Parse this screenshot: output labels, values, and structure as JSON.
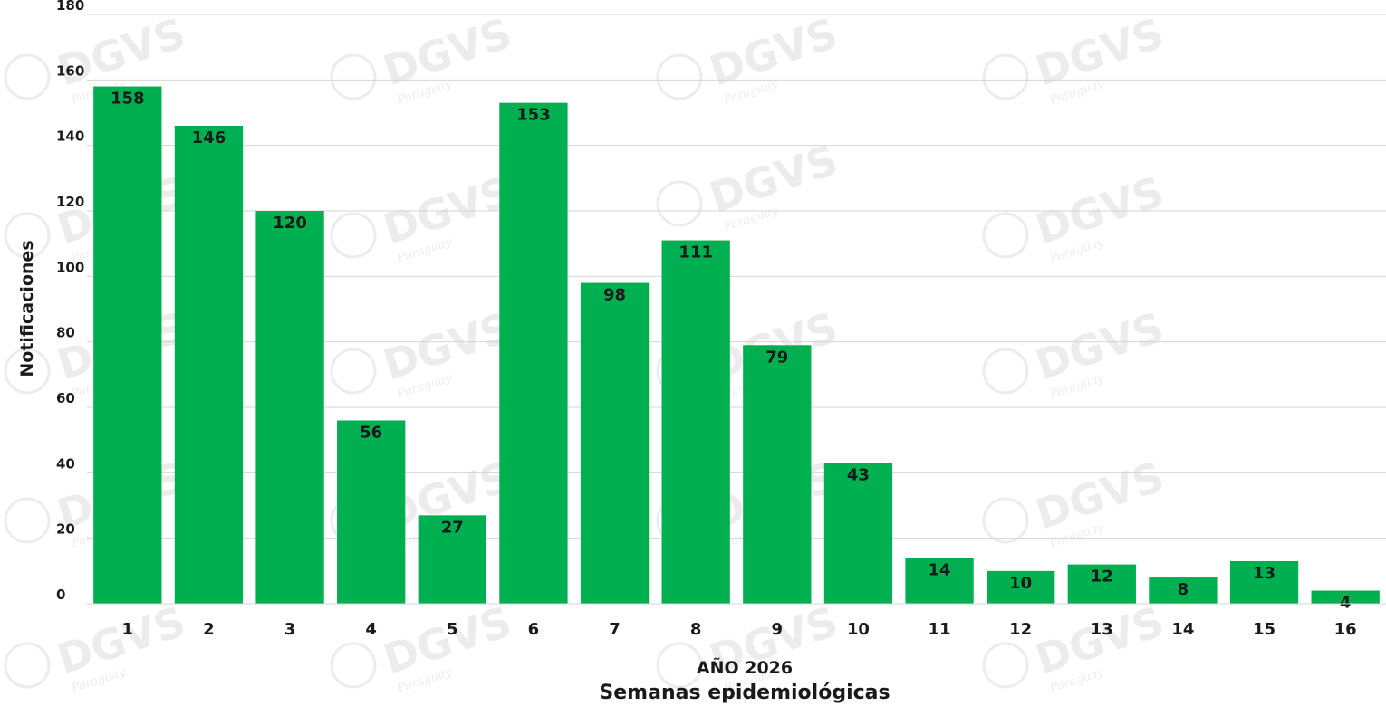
{
  "chart_data": {
    "type": "bar",
    "categories": [
      "1",
      "2",
      "3",
      "4",
      "5",
      "6",
      "7",
      "8",
      "9",
      "10",
      "11",
      "12",
      "13",
      "14",
      "15",
      "16"
    ],
    "values": [
      158,
      146,
      120,
      56,
      27,
      153,
      98,
      111,
      79,
      43,
      14,
      10,
      12,
      8,
      13,
      4
    ],
    "xlabel_line1": "AÑO 2026",
    "xlabel_line2": "Semanas epidemiológicas",
    "ylabel": "Notificaciones",
    "ylim": [
      0,
      180
    ],
    "yticks": [
      0,
      20,
      40,
      60,
      80,
      100,
      120,
      140,
      160,
      180
    ],
    "grid": true,
    "bar_color": "#00b050",
    "watermark": {
      "text": "DGVS",
      "subtext": "Paraguay"
    }
  }
}
